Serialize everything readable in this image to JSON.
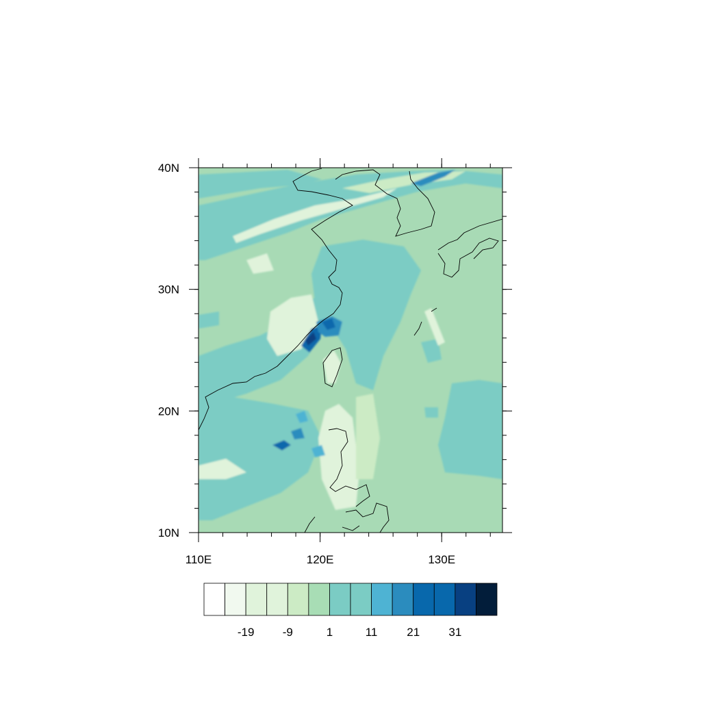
{
  "map": {
    "region": {
      "lon_min": 110,
      "lon_max": 135,
      "lat_min": 10,
      "lat_max": 40
    },
    "ocean_base_color": "#a8dab5",
    "coastline_color": "#000000"
  },
  "axes": {
    "x_ticks": [
      {
        "value": 110,
        "label": "110E"
      },
      {
        "value": 120,
        "label": "120E"
      },
      {
        "value": 130,
        "label": "130E"
      }
    ],
    "y_ticks": [
      {
        "value": 40,
        "label": "40N"
      },
      {
        "value": 30,
        "label": "30N"
      },
      {
        "value": 20,
        "label": "20N"
      },
      {
        "value": 10,
        "label": "10N"
      }
    ]
  },
  "colorbar": {
    "colors": [
      "#ffffff",
      "#f1f9ef",
      "#e0f3db",
      "#e0f3db",
      "#ccebc5",
      "#a8ddb5",
      "#7bccc4",
      "#7bccc4",
      "#4eb3d3",
      "#2b8cbe",
      "#0868ac",
      "#0868ac",
      "#084081",
      "#021d3a"
    ],
    "labels": [
      {
        "index": 2,
        "text": "-19"
      },
      {
        "index": 4,
        "text": "-9"
      },
      {
        "index": 6,
        "text": "1"
      },
      {
        "index": 8,
        "text": "11"
      },
      {
        "index": 10,
        "text": "21"
      },
      {
        "index": 12,
        "text": "31"
      }
    ]
  }
}
